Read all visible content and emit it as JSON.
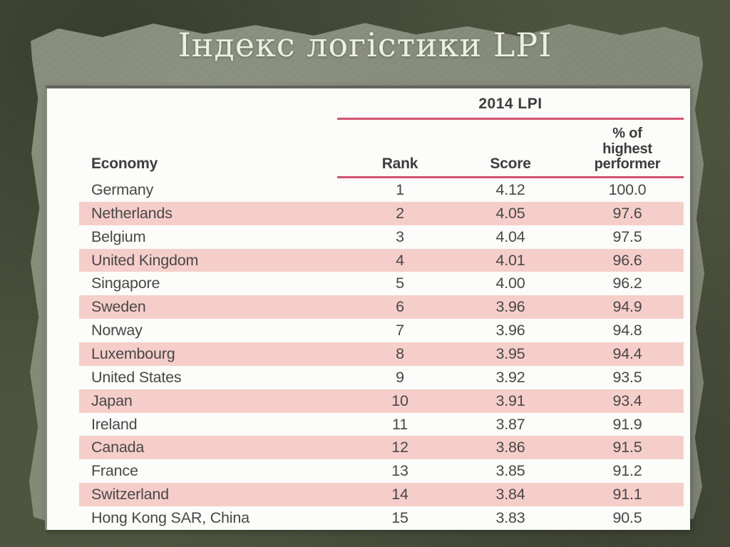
{
  "slide": {
    "title": "Індекс логістики LPI"
  },
  "table": {
    "group_header": "2014 LPI",
    "columns": [
      "Economy",
      "Rank",
      "Score",
      "% of\nhighest\nperformer"
    ]
  },
  "colors": {
    "background_inner": "#868b79",
    "background_border": "#4f5640",
    "panel": "#fcfcfa",
    "row_highlight": "#f6cec9",
    "rule_pink": "#d4536f",
    "table_text": "#3c3c3e",
    "title_text": "#ecefe2"
  },
  "chart_data": {
    "type": "table",
    "title": "2014 LPI",
    "columns": [
      "Economy",
      "Rank",
      "Score",
      "% of highest performer"
    ],
    "rows": [
      {
        "economy": "Germany",
        "rank": "1",
        "score": "4.12",
        "pct": "100.0"
      },
      {
        "economy": "Netherlands",
        "rank": "2",
        "score": "4.05",
        "pct": "97.6"
      },
      {
        "economy": "Belgium",
        "rank": "3",
        "score": "4.04",
        "pct": "97.5"
      },
      {
        "economy": "United Kingdom",
        "rank": "4",
        "score": "4.01",
        "pct": "96.6"
      },
      {
        "economy": "Singapore",
        "rank": "5",
        "score": "4.00",
        "pct": "96.2"
      },
      {
        "economy": "Sweden",
        "rank": "6",
        "score": "3.96",
        "pct": "94.9"
      },
      {
        "economy": "Norway",
        "rank": "7",
        "score": "3.96",
        "pct": "94.8"
      },
      {
        "economy": "Luxembourg",
        "rank": "8",
        "score": "3.95",
        "pct": "94.4"
      },
      {
        "economy": "United States",
        "rank": "9",
        "score": "3.92",
        "pct": "93.5"
      },
      {
        "economy": "Japan",
        "rank": "10",
        "score": "3.91",
        "pct": "93.4"
      },
      {
        "economy": "Ireland",
        "rank": "11",
        "score": "3.87",
        "pct": "91.9"
      },
      {
        "economy": "Canada",
        "rank": "12",
        "score": "3.86",
        "pct": "91.5"
      },
      {
        "economy": "France",
        "rank": "13",
        "score": "3.85",
        "pct": "91.2"
      },
      {
        "economy": "Switzerland",
        "rank": "14",
        "score": "3.84",
        "pct": "91.1"
      },
      {
        "economy": "Hong Kong SAR, China",
        "rank": "15",
        "score": "3.83",
        "pct": "90.5"
      }
    ],
    "layout": {
      "row_striping": "even-numbered ranks shaded light pink",
      "rules": "pink horizontal rules under group header and column headers, spanning Rank/Score/% columns only"
    }
  }
}
